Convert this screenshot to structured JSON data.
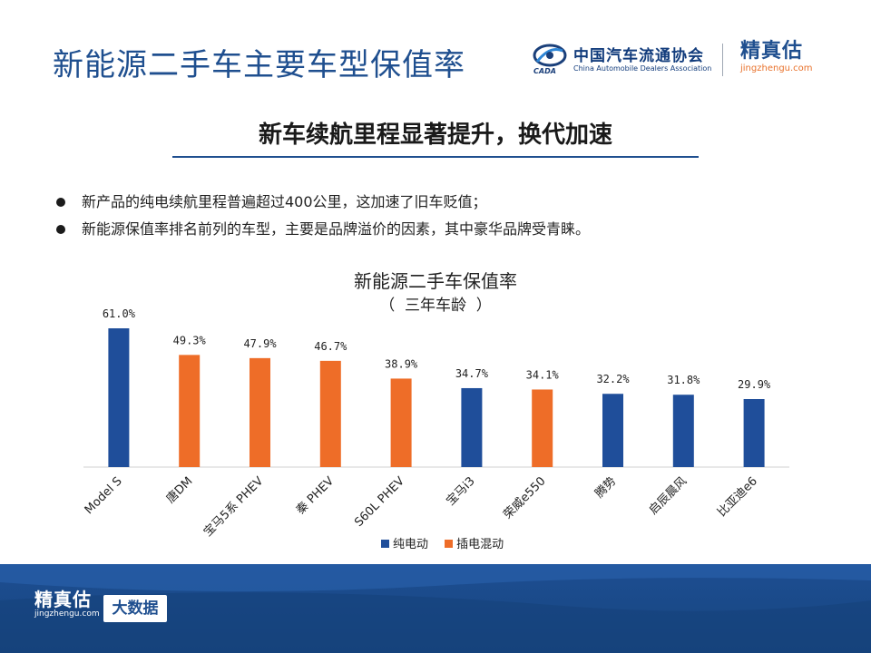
{
  "slide": {
    "title": "新能源二手车主要车型保值率",
    "subtitle": "新车续航里程显著提升，换代加速"
  },
  "header_logos": {
    "cada_cn": "中国汽车流通协会",
    "cada_en": "China Automobile Dealers Association",
    "cada_emblem_text": "CADA",
    "jz_cn": "精真估",
    "jz_en": "jingzhengu.com"
  },
  "bullets": [
    "新产品的纯电续航里程普遍超过400公里，这加速了旧车贬值；",
    "新能源保值率排名前列的车型，主要是品牌溢价的因素，其中豪华品牌受青睐。"
  ],
  "colors": {
    "accent": "#1f4f8f",
    "bev": "#1f4e9a",
    "phev": "#ee6d28"
  },
  "chart_data": {
    "type": "bar",
    "title": "新能源二手车保值率",
    "subtitle": "（  三年车龄  ）",
    "categories": [
      "Model S",
      "唐DM",
      "宝马5系 PHEV",
      "秦 PHEV",
      "S60L PHEV",
      "宝马i3",
      "荣威e550",
      "腾势",
      "启辰晨风",
      "比亚迪e6"
    ],
    "values": [
      61.0,
      49.3,
      47.9,
      46.7,
      38.9,
      34.7,
      34.1,
      32.2,
      31.8,
      29.9
    ],
    "value_labels": [
      "61.0%",
      "49.3%",
      "47.9%",
      "46.7%",
      "38.9%",
      "34.7%",
      "34.1%",
      "32.2%",
      "31.8%",
      "29.9%"
    ],
    "types": [
      "纯电动",
      "插电混动",
      "插电混动",
      "插电混动",
      "插电混动",
      "纯电动",
      "插电混动",
      "纯电动",
      "纯电动",
      "纯电动"
    ],
    "legend": [
      "纯电动",
      "插电混动"
    ],
    "legend_placement": "bottom",
    "ylim": [
      0,
      61
    ],
    "grid": false
  },
  "footer": {
    "logo_cn": "精真估",
    "logo_en": "jingzhengu.com",
    "badge": "大数据"
  }
}
